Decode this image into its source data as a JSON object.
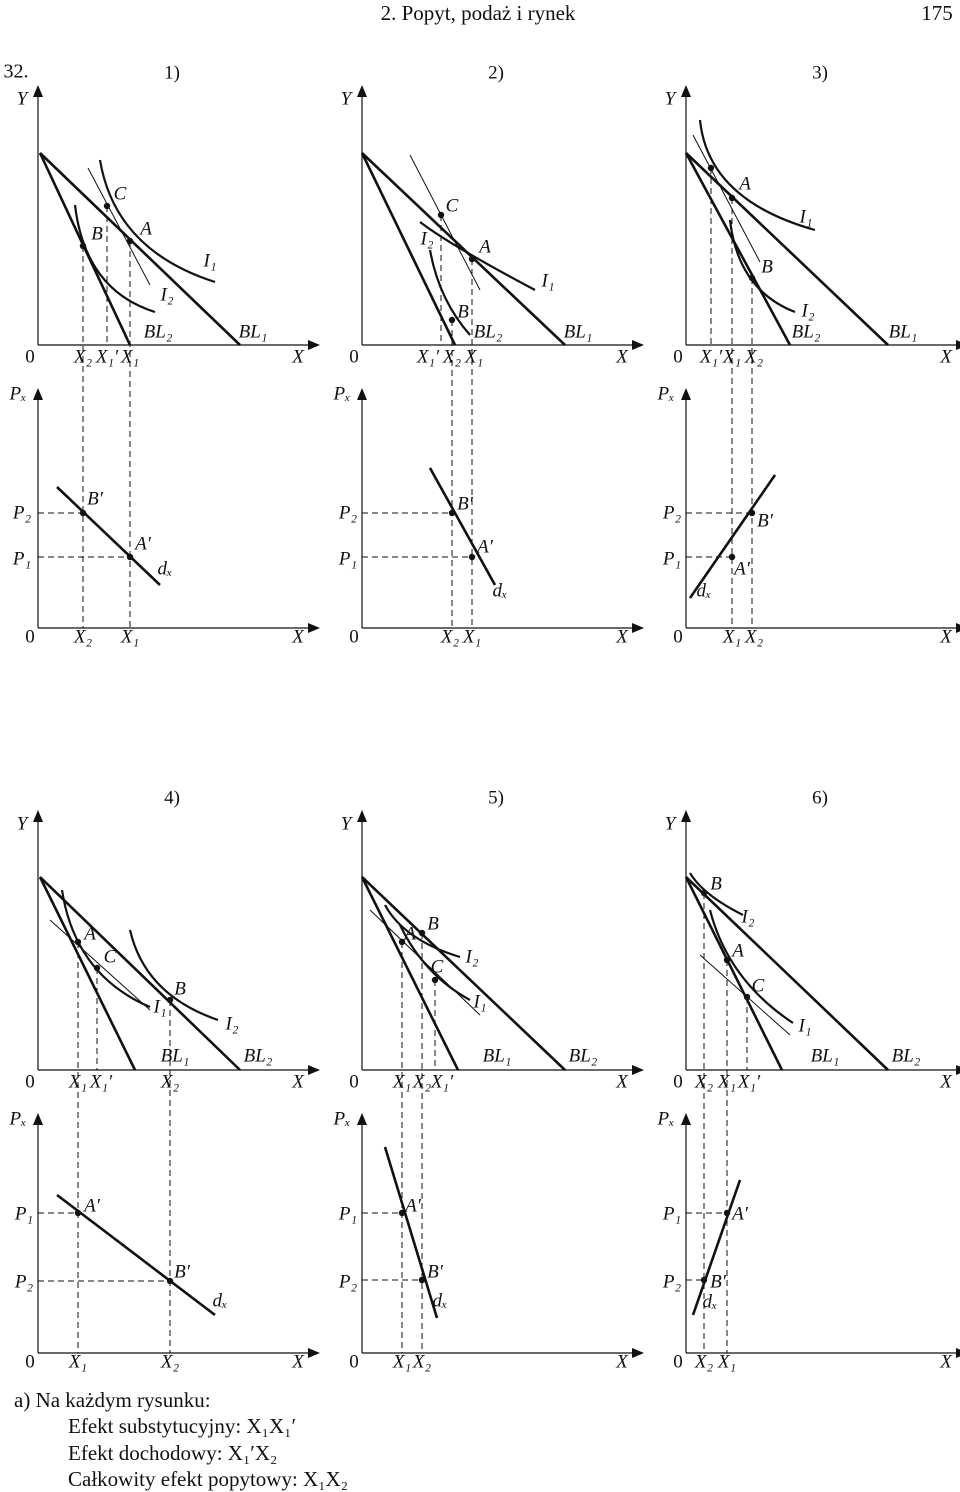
{
  "header": {
    "title": "2. Popyt, podaż i rynek",
    "page": "175"
  },
  "problem": "32.",
  "panels": [
    {
      "number": "1)",
      "top": {
        "labels": [
          "Y",
          "0",
          "X",
          "X₂",
          "X₁′",
          "X₁",
          "B",
          "C",
          "A",
          "I₁",
          "I₂",
          "BL₂",
          "BL₁"
        ]
      },
      "bottom": {
        "labels": [
          "Pₓ",
          "0",
          "X",
          "P₂",
          "P₁",
          "X₂",
          "X₁",
          "B′",
          "A′",
          "dₓ"
        ]
      }
    },
    {
      "number": "2)",
      "top": {
        "labels": [
          "Y",
          "0",
          "X",
          "X₁′",
          "X₂",
          "X₁",
          "C",
          "A",
          "B",
          "I₂",
          "I₁",
          "BL₂",
          "BL₁"
        ]
      },
      "bottom": {
        "labels": [
          "Pₓ",
          "0",
          "X",
          "P₂",
          "P₁",
          "X₂",
          "X₁",
          "B′",
          "A′",
          "dₓ"
        ]
      }
    },
    {
      "number": "3)",
      "top": {
        "labels": [
          "Y",
          "0",
          "X",
          "X₁′",
          "X₁",
          "X₂",
          "A",
          "I₁",
          "B",
          "I₂",
          "BL₂",
          "BL₁"
        ]
      },
      "bottom": {
        "labels": [
          "Pₓ",
          "0",
          "X",
          "P₂",
          "P₁",
          "X₁",
          "X₂",
          "B′",
          "A′",
          "dₓ"
        ]
      }
    },
    {
      "number": "4)",
      "top": {
        "labels": [
          "Y",
          "0",
          "X",
          "X₁",
          "X₁′",
          "X₂",
          "A",
          "C",
          "I₁",
          "B",
          "I₂",
          "BL₁",
          "BL₂"
        ]
      },
      "bottom": {
        "labels": [
          "Pₓ",
          "0",
          "X",
          "P₁",
          "P₂",
          "X₁",
          "X₂",
          "A′",
          "B′",
          "dₓ"
        ]
      }
    },
    {
      "number": "5)",
      "top": {
        "labels": [
          "Y",
          "0",
          "X",
          "X₁",
          "X₂",
          "X₁′",
          "B",
          "A",
          "C",
          "I₂",
          "I₁",
          "BL₁",
          "BL₂"
        ]
      },
      "bottom": {
        "labels": [
          "Pₓ",
          "0",
          "X",
          "P₁",
          "P₂",
          "X₁",
          "X₂",
          "A′",
          "B′",
          "dₓ"
        ]
      }
    },
    {
      "number": "6)",
      "top": {
        "labels": [
          "Y",
          "0",
          "X",
          "X₂",
          "X₁",
          "X₁′",
          "B",
          "I₂",
          "A",
          "C",
          "I₁",
          "BL₁",
          "BL₂"
        ]
      },
      "bottom": {
        "labels": [
          "Pₓ",
          "0",
          "X",
          "P₁",
          "P₂",
          "X₂",
          "X₁",
          "A′",
          "B′",
          "dₓ"
        ]
      }
    }
  ],
  "answer": [
    "a) Na każdym rysunku:",
    "Efekt substytucyjny: X₁X₁′",
    "Efekt dochodowy: X₁′X₂",
    "Całkowity efekt popytowy: X₁X₂"
  ]
}
